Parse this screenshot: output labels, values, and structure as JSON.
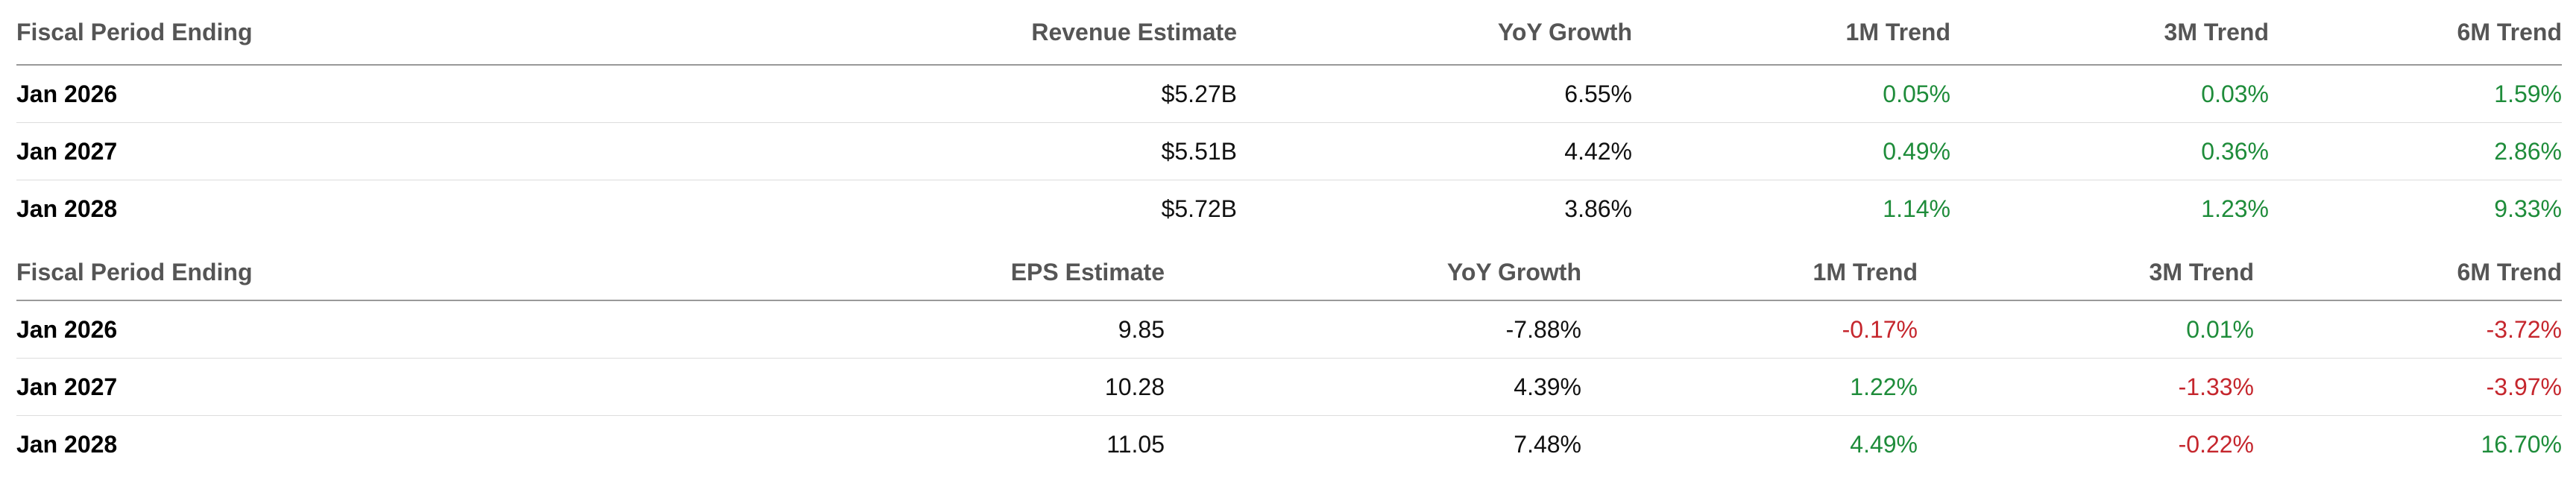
{
  "tables": [
    {
      "headers": [
        "Fiscal Period Ending",
        "Revenue Estimate",
        "YoY Growth",
        "1M Trend",
        "3M Trend",
        "6M Trend"
      ],
      "rows": [
        [
          "Jan 2026",
          "$5.27B",
          "6.55%",
          "0.05%",
          "0.03%",
          "1.59%"
        ],
        [
          "Jan 2027",
          "$5.51B",
          "4.42%",
          "0.49%",
          "0.36%",
          "2.86%"
        ],
        [
          "Jan 2028",
          "$5.72B",
          "3.86%",
          "1.14%",
          "1.23%",
          "9.33%"
        ]
      ]
    },
    {
      "headers": [
        "Fiscal Period Ending",
        "EPS Estimate",
        "YoY Growth",
        "1M Trend",
        "3M Trend",
        "6M Trend"
      ],
      "rows": [
        [
          "Jan 2026",
          "9.85",
          "-7.88%",
          "-0.17%",
          "0.01%",
          "-3.72%"
        ],
        [
          "Jan 2027",
          "10.28",
          "4.39%",
          "1.22%",
          "-1.33%",
          "-3.97%"
        ],
        [
          "Jan 2028",
          "11.05",
          "7.48%",
          "4.49%",
          "-0.22%",
          "16.70%"
        ]
      ]
    }
  ]
}
